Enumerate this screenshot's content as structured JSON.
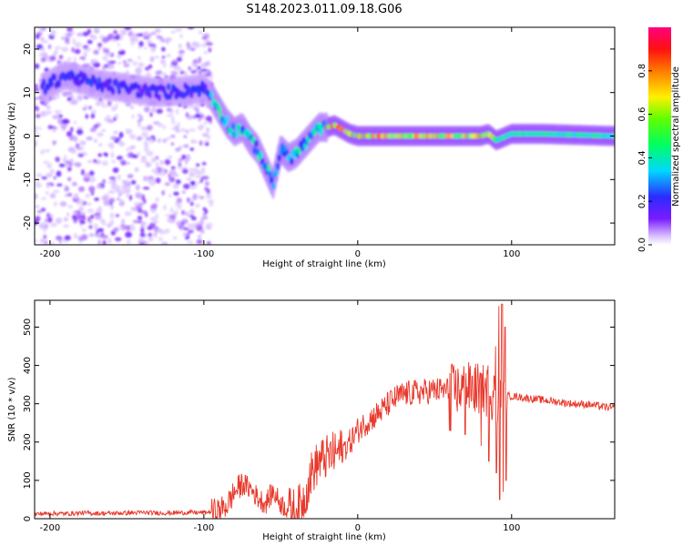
{
  "figure": {
    "title": "S148.2023.011.09.18.G06"
  },
  "chart_data": [
    {
      "type": "heatmap",
      "xlabel": "Height of straight line (km)",
      "ylabel": "Frequency (Hz)",
      "xlim": [
        -210,
        167
      ],
      "ylim": [
        -25,
        25
      ],
      "x_ticks": [
        -200,
        -100,
        0,
        100
      ],
      "y_ticks": [
        -20,
        -10,
        0,
        10,
        20
      ],
      "colorbar": {
        "label": "Normalized spectral amplitude",
        "range": [
          0.0,
          1.0
        ],
        "ticks": [
          0.0,
          0.2,
          0.4,
          0.6,
          0.8
        ],
        "colormap": "rainbow (violet-blue-cyan-green-yellow-red-magenta)"
      },
      "ridge": {
        "x": [
          -205,
          -190,
          -170,
          -150,
          -130,
          -110,
          -100,
          -95,
          -90,
          -85,
          -80,
          -75,
          -70,
          -65,
          -60,
          -55,
          -50,
          -45,
          -40,
          -35,
          -30,
          -25,
          -20,
          -15,
          -10,
          -5,
          0,
          20,
          40,
          60,
          80,
          85,
          90,
          100,
          120,
          167
        ],
        "y": [
          11,
          14,
          12,
          11,
          10,
          10.5,
          11,
          9,
          6,
          3,
          1,
          2,
          -1,
          -3,
          -7,
          -11,
          -3,
          -5,
          -4,
          -2,
          0,
          2,
          2,
          2.5,
          1.5,
          0.5,
          0,
          0,
          0,
          0,
          0,
          0.5,
          -1,
          0.5,
          0.5,
          0
        ]
      },
      "noise_region_x": [
        -210,
        -95
      ]
    },
    {
      "type": "line",
      "xlabel": "Height of straight line (km)",
      "ylabel": "SNR (10 * v/v)",
      "xlim": [
        -210,
        167
      ],
      "ylim": [
        0,
        570
      ],
      "x_ticks": [
        -200,
        -100,
        0,
        100
      ],
      "y_ticks": [
        0,
        100,
        200,
        300,
        400,
        500
      ],
      "series": [
        {
          "color": "#e8392c",
          "x": [
            -210,
            -200,
            -190,
            -180,
            -170,
            -160,
            -150,
            -140,
            -130,
            -120,
            -110,
            -100,
            -90,
            -85,
            -80,
            -75,
            -70,
            -65,
            -60,
            -55,
            -50,
            -45,
            -40,
            -35,
            -30,
            -25,
            -20,
            -15,
            -10,
            -5,
            0,
            5,
            10,
            15,
            20,
            25,
            30,
            40,
            50,
            60,
            70,
            80,
            85,
            90,
            92,
            95,
            100,
            110,
            120,
            130,
            140,
            150,
            160,
            167
          ],
          "y": [
            12,
            14,
            13,
            15,
            14,
            14,
            15,
            16,
            15,
            15,
            16,
            16,
            20,
            35,
            70,
            90,
            80,
            55,
            40,
            70,
            40,
            25,
            20,
            50,
            120,
            150,
            160,
            170,
            180,
            200,
            230,
            250,
            265,
            280,
            300,
            315,
            325,
            330,
            335,
            335,
            340,
            340,
            330,
            320,
            300,
            320,
            320,
            315,
            310,
            305,
            300,
            298,
            292,
            288
          ],
          "spikes": [
            {
              "x": 92,
              "min": 50,
              "max": 555
            },
            {
              "x": 94,
              "min": 70,
              "max": 560
            },
            {
              "x": 96,
              "min": 100,
              "max": 500
            },
            {
              "x": 90,
              "min": 120,
              "max": 450
            },
            {
              "x": 85,
              "min": 150,
              "max": 400
            },
            {
              "x": 80,
              "min": 190,
              "max": 380
            },
            {
              "x": 70,
              "min": 220,
              "max": 380
            },
            {
              "x": 60,
              "min": 230,
              "max": 380
            }
          ]
        }
      ]
    }
  ]
}
